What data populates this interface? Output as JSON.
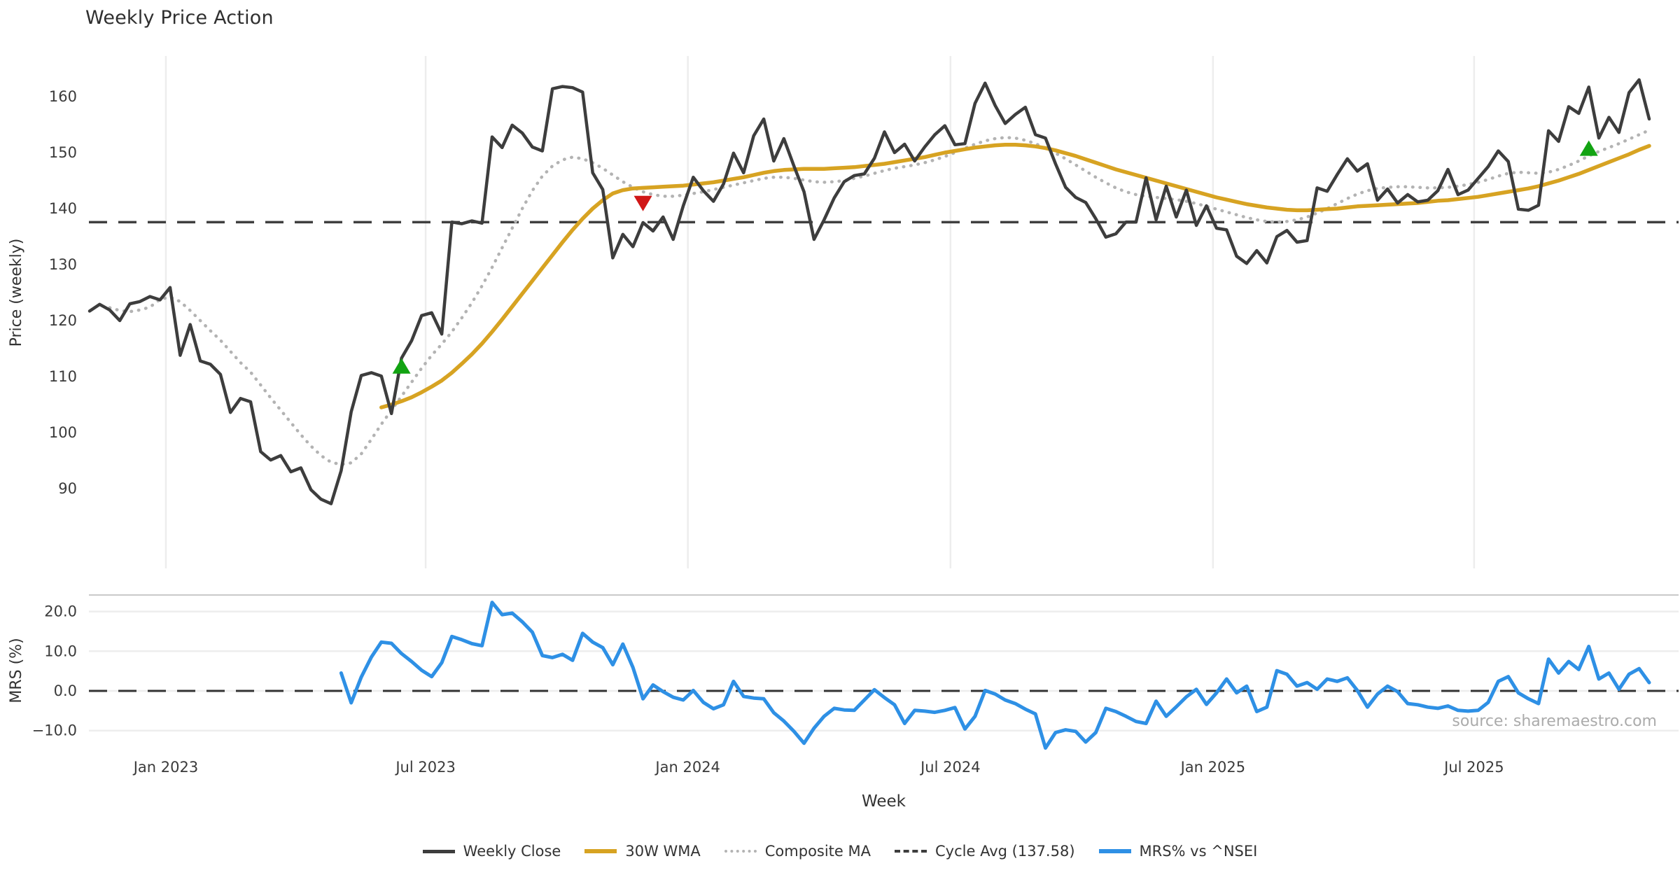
{
  "title": "Weekly Price Action",
  "source_note": "source: sharemaestro.com",
  "axes": {
    "price_axis_label": "Price (weekly)",
    "mrs_axis_label": "MRS (%)",
    "x_axis_label": "Week",
    "price_ticks": [
      160,
      150,
      140,
      130,
      120,
      110,
      100,
      90
    ],
    "mrs_ticks": [
      20.0,
      10.0,
      0.0,
      -10.0
    ],
    "mrs_tick_labels": [
      "20.0",
      "10.0",
      "0.0",
      "−10.0"
    ],
    "x_ticks": [
      {
        "label": "Jan 2023",
        "week": 7.58
      },
      {
        "label": "Jul 2023",
        "week": 33.4
      },
      {
        "label": "Jan 2024",
        "week": 59.46
      },
      {
        "label": "Jul 2024",
        "week": 85.56
      },
      {
        "label": "Jan 2025",
        "week": 111.65
      },
      {
        "label": "Jul 2025",
        "week": 137.6
      }
    ]
  },
  "legend": {
    "items": [
      {
        "label": "Weekly Close",
        "style": "solid-dark"
      },
      {
        "label": "30W WMA",
        "style": "solid-gold"
      },
      {
        "label": "Composite MA",
        "style": "dotted-gray"
      },
      {
        "label": "Cycle Avg (137.58)",
        "style": "dashed-dark"
      },
      {
        "label": "MRS% vs ^NSEI",
        "style": "solid-blue"
      }
    ]
  },
  "colors": {
    "close": "#3d3d3d",
    "wma": "#d7a322",
    "composite": "#b3b3b3",
    "cycle_avg": "#3f3f3f",
    "mrs": "#2e90e5",
    "marker_up": "#12a312",
    "marker_down": "#d01717",
    "gridline": "#ededed",
    "spine": "#c9c9c9",
    "tick_text": "#3a3a3a"
  },
  "chart_data": {
    "type": "line",
    "title": "Weekly Price Action",
    "xlabel": "Week",
    "panels": [
      {
        "name": "price",
        "ylabel": "Price (weekly)",
        "ylim": [
          76,
          167
        ],
        "grid": "vertical"
      },
      {
        "name": "mrs",
        "ylabel": "MRS (%)",
        "ylim": [
          -14,
          24.2
        ],
        "grid": "horizontal"
      }
    ],
    "cycle_avg_value": 137.58,
    "series": [
      {
        "name": "Weekly Close",
        "panel": "price",
        "start_week": 0,
        "values": [
          121.7,
          122.9,
          121.9,
          120.0,
          123.0,
          123.4,
          124.3,
          123.7,
          125.9,
          113.8,
          119.3,
          112.8,
          112.2,
          110.4,
          103.6,
          106.1,
          105.5,
          96.6,
          95.1,
          95.9,
          93.0,
          93.7,
          89.8,
          88.1,
          87.3,
          93.2,
          103.7,
          110.2,
          110.7,
          110.1,
          103.4,
          113.3,
          116.4,
          120.9,
          121.4,
          117.6,
          137.6,
          137.3,
          137.8,
          137.4,
          152.8,
          150.9,
          154.9,
          153.5,
          151.0,
          150.3,
          161.4,
          161.8,
          161.6,
          160.8,
          146.4,
          143.4,
          131.2,
          135.4,
          133.2,
          137.5,
          136.0,
          138.5,
          134.5,
          140.5,
          145.6,
          143.2,
          141.3,
          144.4,
          149.9,
          146.4,
          153.0,
          156.0,
          148.5,
          152.5,
          147.6,
          143.0,
          134.5,
          138.0,
          141.9,
          144.8,
          145.9,
          146.2,
          149.0,
          153.7,
          150.0,
          151.5,
          148.5,
          151.0,
          153.2,
          154.8,
          151.4,
          151.6,
          158.8,
          162.4,
          158.4,
          155.2,
          156.8,
          158.1,
          153.2,
          152.6,
          148.0,
          143.8,
          142.0,
          141.1,
          138.2,
          134.9,
          135.5,
          137.6,
          137.6,
          145.5,
          138.0,
          144.0,
          138.5,
          143.3,
          137.0,
          140.5,
          136.5,
          136.2,
          131.5,
          130.2,
          132.5,
          130.3,
          135.0,
          136.1,
          134.0,
          134.3,
          143.7,
          143.1,
          146.1,
          148.9,
          146.7,
          148.0,
          141.5,
          143.5,
          141.0,
          142.5,
          141.2,
          141.5,
          143.2,
          147.0,
          142.5,
          143.3,
          145.4,
          147.5,
          150.3,
          148.4,
          139.9,
          139.7,
          140.6,
          153.9,
          152.0,
          158.2,
          157.0,
          161.7,
          152.6,
          156.3,
          153.6,
          160.7,
          163.0,
          156.0
        ]
      },
      {
        "name": "30W WMA",
        "panel": "price",
        "start_week": 29,
        "values": [
          104.5,
          105.0,
          105.6,
          106.3,
          107.2,
          108.2,
          109.3,
          110.7,
          112.3,
          114.0,
          115.9,
          118.0,
          120.2,
          122.5,
          124.8,
          127.1,
          129.4,
          131.7,
          134.0,
          136.2,
          138.2,
          140.0,
          141.5,
          142.7,
          143.3,
          143.6,
          143.7,
          143.8,
          143.9,
          144.0,
          144.1,
          144.3,
          144.5,
          144.7,
          145.0,
          145.3,
          145.6,
          146.0,
          146.4,
          146.7,
          146.9,
          147.0,
          147.1,
          147.1,
          147.1,
          147.2,
          147.3,
          147.4,
          147.6,
          147.8,
          148.0,
          148.3,
          148.6,
          148.9,
          149.2,
          149.6,
          150.0,
          150.3,
          150.6,
          150.9,
          151.1,
          151.3,
          151.4,
          151.4,
          151.3,
          151.1,
          150.8,
          150.4,
          149.9,
          149.4,
          148.8,
          148.2,
          147.6,
          147.0,
          146.5,
          146.0,
          145.5,
          145.0,
          144.5,
          144.0,
          143.5,
          143.0,
          142.5,
          142.0,
          141.6,
          141.2,
          140.8,
          140.5,
          140.2,
          140.0,
          139.8,
          139.7,
          139.7,
          139.8,
          139.9,
          140.0,
          140.2,
          140.4,
          140.5,
          140.6,
          140.7,
          140.8,
          140.9,
          141.0,
          141.2,
          141.4,
          141.5,
          141.7,
          141.9,
          142.1,
          142.4,
          142.7,
          143.0,
          143.3,
          143.6,
          144.0,
          144.5,
          145.0,
          145.6,
          146.2,
          146.9,
          147.6,
          148.3,
          149.0,
          149.7,
          150.5,
          151.2
        ]
      },
      {
        "name": "Composite MA",
        "panel": "price",
        "start_week": 2,
        "values": [
          122.3,
          121.8,
          121.6,
          121.9,
          122.4,
          123.8,
          124.2,
          123.4,
          121.8,
          120.0,
          118.2,
          116.5,
          114.5,
          112.5,
          110.8,
          108.5,
          106.2,
          104.0,
          101.8,
          99.6,
          97.6,
          95.9,
          94.7,
          94.3,
          94.6,
          96.2,
          98.8,
          101.5,
          104.0,
          106.5,
          109.0,
          111.5,
          113.8,
          115.8,
          118.0,
          120.5,
          123.2,
          126.2,
          129.5,
          133.0,
          136.5,
          140.0,
          143.2,
          145.8,
          147.6,
          148.7,
          149.2,
          148.9,
          148.2,
          147.2,
          146.0,
          144.8,
          143.8,
          143.0,
          142.5,
          142.2,
          142.2,
          142.4,
          142.7,
          143.0,
          143.4,
          143.8,
          144.2,
          144.6,
          145.0,
          145.4,
          145.6,
          145.6,
          145.4,
          145.1,
          144.8,
          144.7,
          144.8,
          145.0,
          145.4,
          145.8,
          146.3,
          146.8,
          147.2,
          147.5,
          147.8,
          148.2,
          148.7,
          149.3,
          150.0,
          150.8,
          151.5,
          152.1,
          152.5,
          152.7,
          152.6,
          152.2,
          151.6,
          150.8,
          149.9,
          148.9,
          147.8,
          146.7,
          145.6,
          144.6,
          143.7,
          143.0,
          142.5,
          142.2,
          142.0,
          141.8,
          141.6,
          141.3,
          140.9,
          140.4,
          139.9,
          139.4,
          138.9,
          138.4,
          138.0,
          137.7,
          137.6,
          137.7,
          138.0,
          138.5,
          139.2,
          140.0,
          140.9,
          141.8,
          142.6,
          143.2,
          143.6,
          143.8,
          143.9,
          143.9,
          143.8,
          143.7,
          143.7,
          143.8,
          144.0,
          144.3,
          144.7,
          145.2,
          145.8,
          146.3,
          146.5,
          146.4,
          146.3,
          146.5,
          147.0,
          147.7,
          148.5,
          149.4,
          150.2,
          150.9,
          151.6,
          152.4,
          153.2,
          154.0
        ]
      },
      {
        "name": "MRS% vs ^NSEI",
        "panel": "mrs",
        "start_week": 25,
        "values": [
          4.5,
          -3.0,
          3.5,
          8.5,
          12.3,
          12.0,
          9.4,
          7.4,
          5.2,
          3.6,
          7.1,
          13.7,
          12.9,
          11.9,
          11.4,
          22.3,
          19.2,
          19.6,
          17.4,
          14.8,
          8.9,
          8.4,
          9.2,
          7.7,
          14.5,
          12.3,
          10.9,
          6.6,
          11.8,
          5.9,
          -2.0,
          1.5,
          -0.2,
          -1.6,
          -2.3,
          0.1,
          -2.9,
          -4.5,
          -3.5,
          2.4,
          -1.4,
          -1.8,
          -2.0,
          -5.5,
          -7.6,
          -10.2,
          -13.2,
          -9.4,
          -6.4,
          -4.4,
          -4.8,
          -4.9,
          -2.3,
          0.3,
          -1.7,
          -3.5,
          -8.2,
          -4.9,
          -5.1,
          -5.4,
          -4.9,
          -4.2,
          -9.6,
          -6.4,
          0.1,
          -0.8,
          -2.3,
          -3.2,
          -4.6,
          -5.8,
          -14.4,
          -10.5,
          -9.8,
          -10.2,
          -12.9,
          -10.5,
          -4.4,
          -5.2,
          -6.4,
          -7.7,
          -8.2,
          -2.6,
          -6.4,
          -4.0,
          -1.5,
          0.4,
          -3.4,
          -0.5,
          3.0,
          -0.5,
          1.2,
          -5.2,
          -4.1,
          5.1,
          4.2,
          1.2,
          2.1,
          0.4,
          3.0,
          2.4,
          3.3,
          0.1,
          -4.1,
          -0.8,
          1.2,
          -0.2,
          -3.2,
          -3.5,
          -4.1,
          -4.4,
          -3.8,
          -4.9,
          -5.1,
          -4.9,
          -2.9,
          2.4,
          3.6,
          -0.5,
          -2.0,
          -3.2,
          8.0,
          4.5,
          7.4,
          5.4,
          11.2,
          3.0,
          4.5,
          0.4,
          4.2,
          5.6,
          2.1
        ]
      }
    ],
    "markers": [
      {
        "shape": "triangle-up",
        "week": 31,
        "value": 111.9,
        "color": "#12a312"
      },
      {
        "shape": "triangle-down",
        "week": 55,
        "value": 140.9,
        "color": "#d01717"
      },
      {
        "shape": "triangle-up",
        "week": 149,
        "value": 150.8,
        "color": "#12a312"
      }
    ]
  }
}
